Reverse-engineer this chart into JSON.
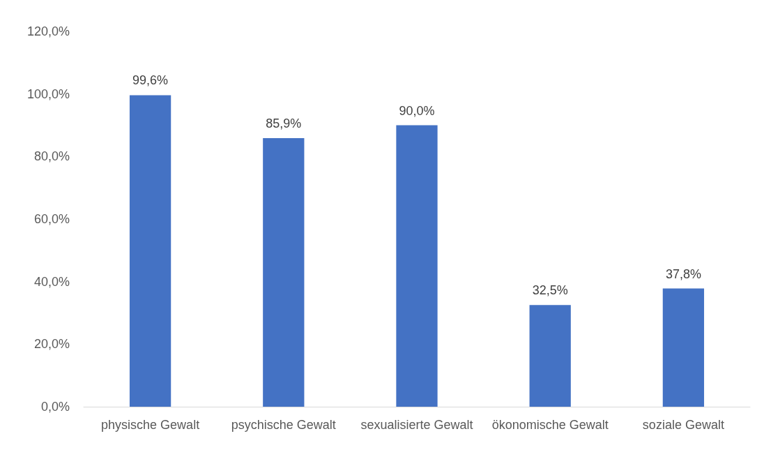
{
  "chart_data": {
    "type": "bar",
    "categories": [
      "physische Gewalt",
      "psychische Gewalt",
      "sexualisierte Gewalt",
      "ökonomische Gewalt",
      "soziale Gewalt"
    ],
    "values": [
      99.6,
      85.9,
      90.0,
      32.5,
      37.8
    ],
    "value_labels": [
      "99,6%",
      "85,9%",
      "90,0%",
      "32,5%",
      "37,8%"
    ],
    "color": "#4472c4",
    "ylim": [
      0,
      120
    ],
    "yticks": [
      {
        "value": 0,
        "label": "0,0%"
      },
      {
        "value": 20,
        "label": "20,0%"
      },
      {
        "value": 40,
        "label": "40,0%"
      },
      {
        "value": 60,
        "label": "60,0%"
      },
      {
        "value": 80,
        "label": "80,0%"
      },
      {
        "value": 100,
        "label": "100,0%"
      },
      {
        "value": 120,
        "label": "120,0%"
      }
    ],
    "grid": false
  }
}
